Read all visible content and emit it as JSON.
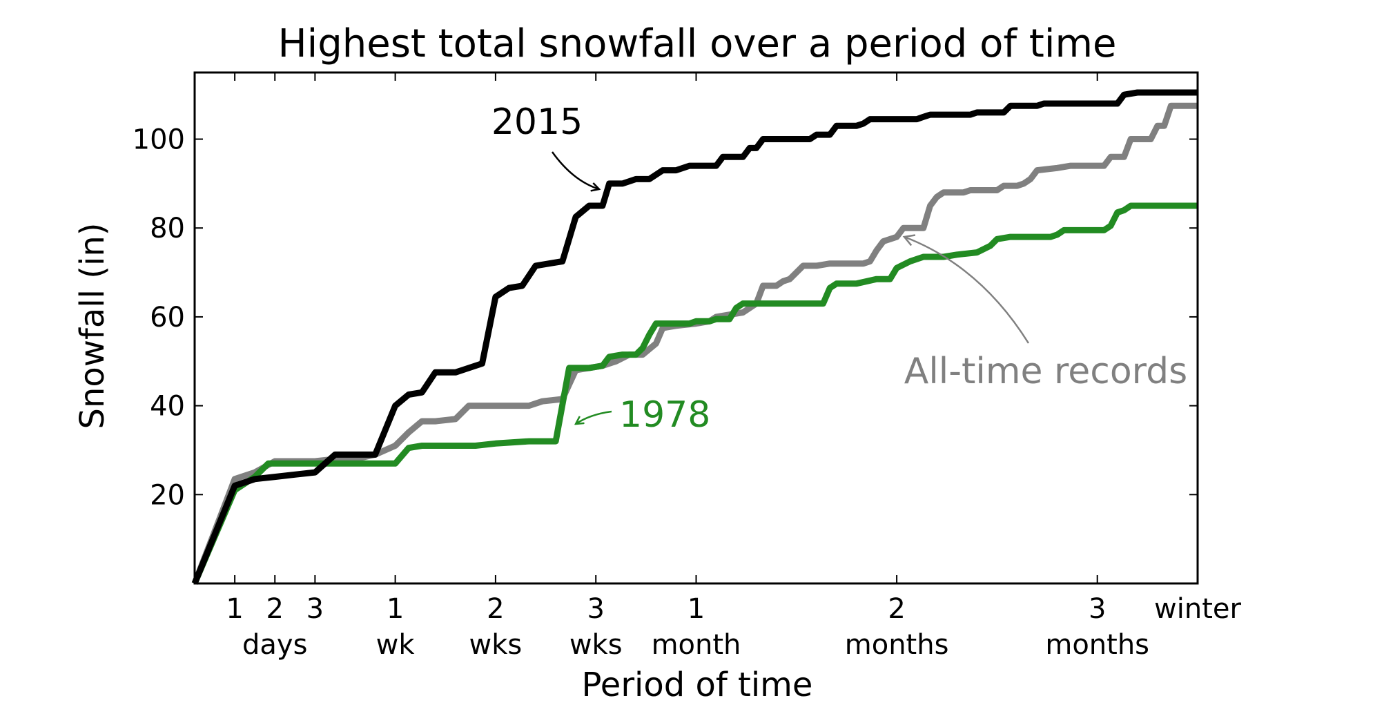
{
  "chart_data": {
    "type": "line",
    "title": "Highest total snowfall over a period of time",
    "xlabel": "Period of time",
    "ylabel": "Snowfall (in)",
    "x_unit": "days",
    "xlim": [
      0,
      150
    ],
    "ylim": [
      0,
      115
    ],
    "grid": false,
    "legend": "none",
    "yticks": [
      20,
      40,
      60,
      80,
      100
    ],
    "xticks": [
      {
        "x": 6,
        "top": "1",
        "bottom": ""
      },
      {
        "x": 12,
        "top": "2",
        "bottom": "days"
      },
      {
        "x": 18,
        "top": "3",
        "bottom": ""
      },
      {
        "x": 30,
        "top": "1",
        "bottom": "wk"
      },
      {
        "x": 45,
        "top": "2",
        "bottom": "wks"
      },
      {
        "x": 60,
        "top": "3",
        "bottom": "wks"
      },
      {
        "x": 75,
        "top": "1",
        "bottom": "month"
      },
      {
        "x": 105,
        "top": "2",
        "bottom": "months"
      },
      {
        "x": 135,
        "top": "3",
        "bottom": "months"
      },
      {
        "x": 150,
        "top": "winter",
        "bottom": ""
      }
    ],
    "series": [
      {
        "color": "#808080",
        "points": [
          [
            0,
            0
          ],
          [
            6,
            23.5
          ],
          [
            9,
            25
          ],
          [
            12,
            27.5
          ],
          [
            15,
            27.5
          ],
          [
            18,
            27.5
          ],
          [
            21,
            28
          ],
          [
            24,
            28
          ],
          [
            27,
            29
          ],
          [
            30,
            31
          ],
          [
            32,
            34
          ],
          [
            34,
            36.5
          ],
          [
            36,
            36.5
          ],
          [
            39,
            37
          ],
          [
            41,
            40
          ],
          [
            45,
            40
          ],
          [
            50,
            40
          ],
          [
            52,
            41
          ],
          [
            55,
            41.5
          ],
          [
            57,
            48
          ],
          [
            59,
            48.5
          ],
          [
            61,
            49
          ],
          [
            63,
            50
          ],
          [
            65,
            51.5
          ],
          [
            67,
            51.5
          ],
          [
            69,
            54
          ],
          [
            70,
            57.5
          ],
          [
            72,
            58
          ],
          [
            75,
            58.5
          ],
          [
            77,
            59
          ],
          [
            78,
            60
          ],
          [
            80,
            60.5
          ],
          [
            82,
            61
          ],
          [
            84,
            63
          ],
          [
            85,
            67
          ],
          [
            87,
            67
          ],
          [
            88,
            68
          ],
          [
            89,
            68.5
          ],
          [
            91,
            71.5
          ],
          [
            93,
            71.5
          ],
          [
            95,
            72
          ],
          [
            100,
            72
          ],
          [
            101,
            72.5
          ],
          [
            102,
            75
          ],
          [
            103,
            77
          ],
          [
            105,
            78
          ],
          [
            106,
            80
          ],
          [
            109,
            80
          ],
          [
            110,
            85
          ],
          [
            111,
            87
          ],
          [
            112,
            88
          ],
          [
            115,
            88
          ],
          [
            116,
            88.5
          ],
          [
            120,
            88.5
          ],
          [
            121,
            89.5
          ],
          [
            123,
            89.5
          ],
          [
            124,
            90
          ],
          [
            125,
            91
          ],
          [
            126,
            93
          ],
          [
            129,
            93.5
          ],
          [
            131,
            94
          ],
          [
            136,
            94
          ],
          [
            137,
            96
          ],
          [
            139,
            96
          ],
          [
            140,
            100
          ],
          [
            143,
            100
          ],
          [
            144,
            103
          ],
          [
            145,
            103
          ],
          [
            146,
            107.5
          ],
          [
            150,
            107.5
          ]
        ]
      },
      {
        "color": "#228b22",
        "points": [
          [
            0,
            0
          ],
          [
            6,
            21
          ],
          [
            9,
            24
          ],
          [
            11,
            27
          ],
          [
            15,
            27
          ],
          [
            20,
            27
          ],
          [
            25,
            27
          ],
          [
            30,
            27
          ],
          [
            32,
            30.5
          ],
          [
            34,
            31
          ],
          [
            36,
            31
          ],
          [
            42,
            31
          ],
          [
            45,
            31.5
          ],
          [
            50,
            32
          ],
          [
            54,
            32
          ],
          [
            56,
            48.5
          ],
          [
            59,
            48.5
          ],
          [
            61,
            49
          ],
          [
            62,
            51
          ],
          [
            64,
            51.5
          ],
          [
            66,
            51.5
          ],
          [
            67,
            53
          ],
          [
            68,
            56
          ],
          [
            69,
            58.5
          ],
          [
            72,
            58.5
          ],
          [
            74,
            58.5
          ],
          [
            75,
            59
          ],
          [
            77,
            59
          ],
          [
            78,
            59.5
          ],
          [
            80,
            59.5
          ],
          [
            81,
            62
          ],
          [
            82,
            63
          ],
          [
            85,
            63
          ],
          [
            90,
            63
          ],
          [
            94,
            63
          ],
          [
            95,
            66.5
          ],
          [
            96,
            67.5
          ],
          [
            99,
            67.5
          ],
          [
            102,
            68.5
          ],
          [
            104,
            68.5
          ],
          [
            105,
            71
          ],
          [
            107,
            72.5
          ],
          [
            109,
            73.5
          ],
          [
            112,
            73.5
          ],
          [
            114,
            74
          ],
          [
            117,
            74.5
          ],
          [
            119,
            76
          ],
          [
            120,
            77.5
          ],
          [
            122,
            78
          ],
          [
            128,
            78
          ],
          [
            129,
            78.5
          ],
          [
            130,
            79.5
          ],
          [
            133,
            79.5
          ],
          [
            136,
            79.5
          ],
          [
            137,
            80.5
          ],
          [
            138,
            83.5
          ],
          [
            139,
            84
          ],
          [
            140,
            85
          ],
          [
            150,
            85
          ]
        ]
      },
      {
        "color": "#000000",
        "points": [
          [
            0,
            0
          ],
          [
            6,
            22
          ],
          [
            9,
            23.5
          ],
          [
            12,
            24
          ],
          [
            15,
            24.5
          ],
          [
            18,
            25
          ],
          [
            21,
            29
          ],
          [
            24,
            29
          ],
          [
            27,
            29
          ],
          [
            30,
            40
          ],
          [
            32,
            42.5
          ],
          [
            34,
            43
          ],
          [
            36,
            47.5
          ],
          [
            39,
            47.5
          ],
          [
            40,
            48
          ],
          [
            43,
            49.5
          ],
          [
            45,
            64.5
          ],
          [
            47,
            66.5
          ],
          [
            49,
            67
          ],
          [
            51,
            71.5
          ],
          [
            53,
            72
          ],
          [
            55,
            72.5
          ],
          [
            57,
            82.5
          ],
          [
            59,
            85
          ],
          [
            61,
            85
          ],
          [
            62,
            90
          ],
          [
            64,
            90
          ],
          [
            66,
            91
          ],
          [
            68,
            91
          ],
          [
            70,
            93
          ],
          [
            72,
            93
          ],
          [
            74,
            94
          ],
          [
            78,
            94
          ],
          [
            79,
            96
          ],
          [
            82,
            96
          ],
          [
            83,
            98
          ],
          [
            84,
            98
          ],
          [
            85,
            100
          ],
          [
            90,
            100
          ],
          [
            92,
            100
          ],
          [
            93,
            101
          ],
          [
            95,
            101
          ],
          [
            96,
            103
          ],
          [
            99,
            103
          ],
          [
            100,
            103.5
          ],
          [
            101,
            104.5
          ],
          [
            105,
            104.5
          ],
          [
            108,
            104.5
          ],
          [
            109,
            105
          ],
          [
            110,
            105.5
          ],
          [
            113,
            105.5
          ],
          [
            116,
            105.5
          ],
          [
            117,
            106
          ],
          [
            121,
            106
          ],
          [
            122,
            107.5
          ],
          [
            126,
            107.5
          ],
          [
            127,
            108
          ],
          [
            130,
            108
          ],
          [
            135,
            108
          ],
          [
            138,
            108
          ],
          [
            139,
            110
          ],
          [
            141,
            110.5
          ],
          [
            150,
            110.5
          ]
        ]
      }
    ],
    "annotations": [
      {
        "text": "2015",
        "color": "#000000"
      },
      {
        "text": "1978",
        "color": "#228b22"
      },
      {
        "text": "All-time records",
        "color": "#808080"
      }
    ]
  }
}
